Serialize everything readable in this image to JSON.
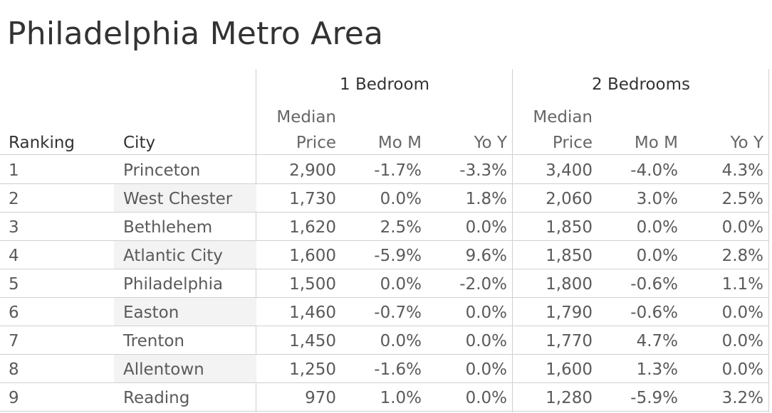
{
  "title": "Philadelphia Metro Area",
  "chart_data": {
    "type": "table",
    "title": "Philadelphia Metro Area",
    "groups": [
      "1 Bedroom",
      "2 Bedrooms"
    ],
    "row_headers": [
      "Ranking",
      "City"
    ],
    "sub_columns": {
      "median_line1": "Median",
      "median_line2": "Price",
      "mom": "Mo M",
      "yoy": "Yo Y"
    },
    "rows": [
      {
        "rank": "1",
        "city": "Princeton",
        "b1_price": "2,900",
        "b1_mom": "-1.7%",
        "b1_yoy": "-3.3%",
        "b2_price": "3,400",
        "b2_mom": "-4.0%",
        "b2_yoy": "4.3%"
      },
      {
        "rank": "2",
        "city": "West Chester",
        "b1_price": "1,730",
        "b1_mom": "0.0%",
        "b1_yoy": "1.8%",
        "b2_price": "2,060",
        "b2_mom": "3.0%",
        "b2_yoy": "2.5%"
      },
      {
        "rank": "3",
        "city": "Bethlehem",
        "b1_price": "1,620",
        "b1_mom": "2.5%",
        "b1_yoy": "0.0%",
        "b2_price": "1,850",
        "b2_mom": "0.0%",
        "b2_yoy": "0.0%"
      },
      {
        "rank": "4",
        "city": "Atlantic City",
        "b1_price": "1,600",
        "b1_mom": "-5.9%",
        "b1_yoy": "9.6%",
        "b2_price": "1,850",
        "b2_mom": "0.0%",
        "b2_yoy": "2.8%"
      },
      {
        "rank": "5",
        "city": "Philadelphia",
        "b1_price": "1,500",
        "b1_mom": "0.0%",
        "b1_yoy": "-2.0%",
        "b2_price": "1,800",
        "b2_mom": "-0.6%",
        "b2_yoy": "1.1%"
      },
      {
        "rank": "6",
        "city": "Easton",
        "b1_price": "1,460",
        "b1_mom": "-0.7%",
        "b1_yoy": "0.0%",
        "b2_price": "1,790",
        "b2_mom": "-0.6%",
        "b2_yoy": "0.0%"
      },
      {
        "rank": "7",
        "city": "Trenton",
        "b1_price": "1,450",
        "b1_mom": "0.0%",
        "b1_yoy": "0.0%",
        "b2_price": "1,770",
        "b2_mom": "4.7%",
        "b2_yoy": "0.0%"
      },
      {
        "rank": "8",
        "city": "Allentown",
        "b1_price": "1,250",
        "b1_mom": "-1.6%",
        "b1_yoy": "0.0%",
        "b2_price": "1,600",
        "b2_mom": "1.3%",
        "b2_yoy": "0.0%"
      },
      {
        "rank": "9",
        "city": "Reading",
        "b1_price": "970",
        "b1_mom": "1.0%",
        "b1_yoy": "0.0%",
        "b2_price": "1,280",
        "b2_mom": "-5.9%",
        "b2_yoy": "3.2%"
      }
    ]
  }
}
